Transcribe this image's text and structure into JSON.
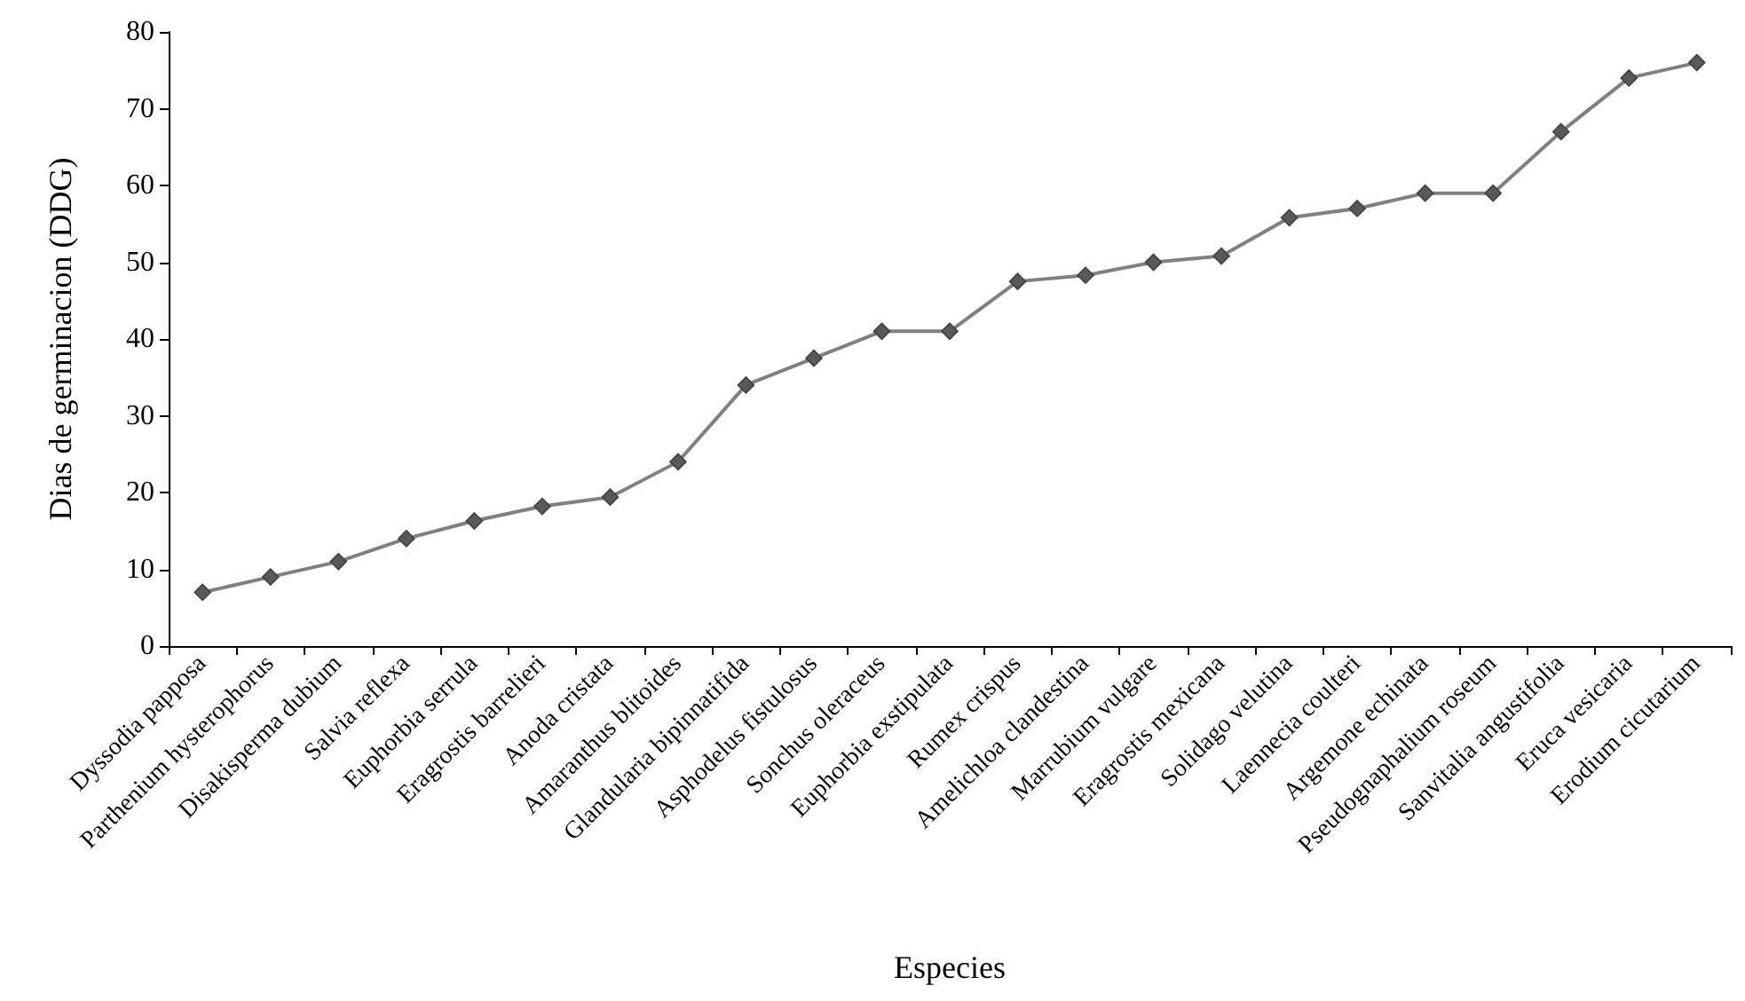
{
  "chart_data": {
    "type": "line",
    "xlabel": "Especies",
    "ylabel": "Dias de germinacion (DDG)",
    "categories": [
      "Dyssodia papposa",
      "Parthenium hysterophorus",
      "Disakisperma dubium",
      "Salvia reflexa",
      "Euphorbia serrula",
      "Eragrostis barrelieri",
      "Anoda cristata",
      "Amaranthus blitoides",
      "Glandularia bipinnatifida",
      "Asphodelus fistulosus",
      "Sonchus oleraceus",
      "Euphorbia exstipulata",
      "Rumex crispus",
      "Amelichloa clandestina",
      "Marrubium vulgare",
      "Eragrostis mexicana",
      "Solidago velutina",
      "Laennecia coulteri",
      "Argemone echinata",
      "Pseudognaphalium roseum",
      "Sanvitalia angustifolia",
      "Eruca vesicaria",
      "Erodium cicutarium"
    ],
    "series": [
      {
        "color": "#808080",
        "values": [
          7,
          9,
          11,
          14,
          16.3,
          18.2,
          19.4,
          24,
          34,
          37.5,
          41,
          41,
          47.5,
          48.3,
          50,
          50.8,
          55.8,
          57,
          59,
          59,
          67,
          74,
          76
        ]
      }
    ],
    "ylim": [
      0,
      80
    ],
    "yticks": [
      0,
      10,
      20,
      30,
      40,
      50,
      60,
      70,
      80
    ],
    "grid": false,
    "marker": "diamond",
    "line_style": "solid"
  }
}
